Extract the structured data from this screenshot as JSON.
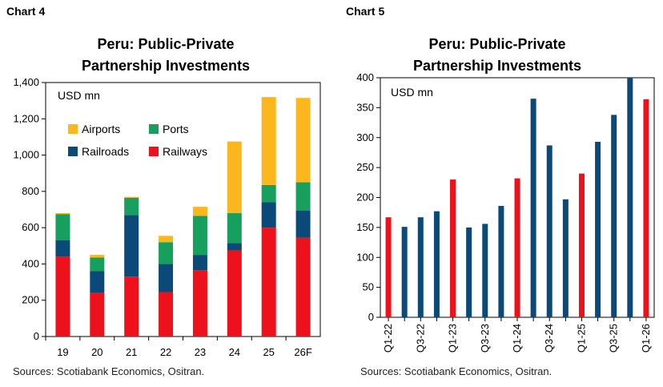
{
  "chart_data": [
    {
      "type": "bar",
      "stacked": true,
      "label": "Chart 4",
      "title": [
        "Peru: Public-Private",
        "Partnership Investments"
      ],
      "unit_label": "USD mn",
      "categories": [
        "19",
        "20",
        "21",
        "22",
        "23",
        "24",
        "25",
        "26F"
      ],
      "ylim": [
        0,
        1400
      ],
      "yticks": [
        0,
        200,
        400,
        600,
        800,
        1000,
        1200,
        1400
      ],
      "ytick_labels": [
        "0",
        "200",
        "400",
        "600",
        "800",
        "1,000",
        "1,200",
        "1,400"
      ],
      "series": [
        {
          "name": "Railways",
          "color": "#EC111A",
          "values": [
            440,
            240,
            330,
            245,
            365,
            475,
            600,
            545
          ]
        },
        {
          "name": "Railroads",
          "color": "#0B4A78",
          "values": [
            90,
            120,
            340,
            155,
            85,
            40,
            140,
            150
          ]
        },
        {
          "name": "Ports",
          "color": "#17A05D",
          "values": [
            145,
            75,
            95,
            120,
            215,
            165,
            95,
            155
          ]
        },
        {
          "name": "Airports",
          "color": "#FCB71E",
          "values": [
            5,
            15,
            5,
            35,
            50,
            395,
            485,
            465
          ]
        }
      ],
      "legend_order": [
        "Airports",
        "Ports",
        "Railroads",
        "Railways"
      ],
      "legend_position": "top-left",
      "source": "Sources: Scotiabank Economics, Ositran."
    },
    {
      "type": "bar",
      "label": "Chart 5",
      "title": [
        "Peru: Public-Private",
        "Partnership Investments"
      ],
      "unit_label": "USD mn",
      "categories": [
        "Q1-22",
        "Q2-22",
        "Q3-22",
        "Q4-22",
        "Q1-23",
        "Q2-23",
        "Q3-23",
        "Q4-23",
        "Q1-24",
        "Q2-24",
        "Q3-24",
        "Q4-24",
        "Q1-25",
        "Q2-25",
        "Q3-25",
        "Q4-25",
        "Q1-26"
      ],
      "tick_labels_shown": [
        "Q1-22",
        "Q3-22",
        "Q1-23",
        "Q3-23",
        "Q1-24",
        "Q3-24",
        "Q1-25",
        "Q3-25",
        "Q1-26"
      ],
      "values": [
        167,
        151,
        167,
        177,
        230,
        150,
        156,
        186,
        232,
        365,
        287,
        197,
        240,
        293,
        338,
        400,
        364
      ],
      "highlight_color": "#EC111A",
      "base_color": "#0B4A78",
      "highlighted": [
        "Q1-22",
        "Q1-23",
        "Q1-24",
        "Q1-25",
        "Q1-26"
      ],
      "ylim": [
        0,
        400
      ],
      "yticks": [
        0,
        50,
        100,
        150,
        200,
        250,
        300,
        350,
        400
      ],
      "source": "Sources: Scotiabank Economics, Ositran."
    }
  ]
}
